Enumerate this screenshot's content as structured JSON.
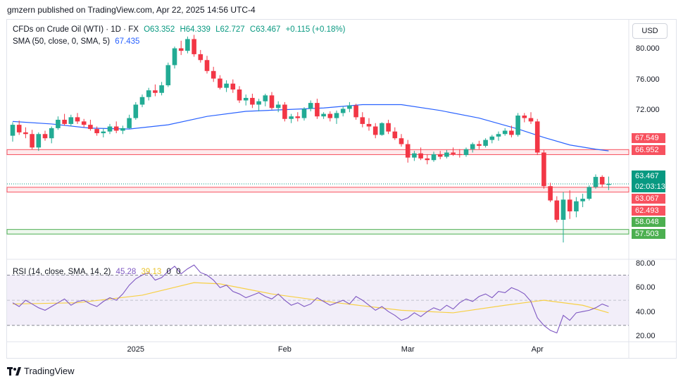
{
  "publisher": "gmzern published on TradingView.com, Apr 22, 2025 14:56 UTC-4",
  "currency": "USD",
  "footer_brand": "TradingView",
  "legend": {
    "title": "CFDs on Crude Oil (WTI) · 1D · FX",
    "open": "O63.352",
    "high": "H64.339",
    "low": "L62.727",
    "close": "C63.467",
    "change": "+0.115 (+0.18%)",
    "sma_label": "SMA (50, close, 0, SMA, 5)",
    "sma_value": "67.435",
    "rsi_label": "RSI (14, close, SMA, 14, 2)",
    "rsi_value": "45.28",
    "rsi_sma_value": "39.13",
    "rsi_extra1": "0",
    "rsi_extra2": "0"
  },
  "badges": {
    "r1": "67.549",
    "r2": "66.952",
    "price": "63.467",
    "countdown": "02:03:13",
    "s1": "63.067",
    "s2": "62.493",
    "s3": "58.048",
    "s4": "57.503"
  },
  "colors": {
    "up": "#22ab94",
    "down": "#f23645",
    "sma": "#2962ff",
    "rsi": "#7e57c2",
    "rsi_sma": "#f7d046",
    "resistance_band": "#f7525f",
    "support_band": "#4caf50"
  },
  "chart_data": {
    "type": "candlestick",
    "price_axis": {
      "ylim": [
        54.5,
        83.0
      ],
      "ticks": [
        "80.000",
        "76.000",
        "72.000"
      ]
    },
    "rsi_axis": {
      "ylim": [
        17,
        82
      ],
      "ticks": [
        "80.00",
        "60.00",
        "40.00",
        "20.00"
      ],
      "bands": [
        30,
        70
      ],
      "mid": 50
    },
    "x_labels": [
      {
        "label": "2025",
        "index": 19
      },
      {
        "label": "Feb",
        "index": 42
      },
      {
        "label": "Mar",
        "index": 61
      },
      {
        "label": "Apr",
        "index": 81
      }
    ],
    "horizontal_levels": {
      "resistance": [
        67.549,
        66.952
      ],
      "current": 63.467,
      "mid": [
        63.067,
        62.493
      ],
      "support": [
        58.048,
        57.503
      ]
    },
    "candles": [
      [
        69.2,
        70.8,
        68.5,
        70.5
      ],
      [
        70.5,
        71.0,
        69.3,
        69.6
      ],
      [
        69.6,
        70.2,
        68.9,
        69.4
      ],
      [
        69.4,
        69.9,
        67.6,
        67.8
      ],
      [
        67.8,
        69.6,
        67.4,
        69.4
      ],
      [
        69.4,
        69.8,
        68.6,
        68.9
      ],
      [
        68.9,
        70.3,
        68.3,
        70.1
      ],
      [
        70.1,
        71.5,
        69.9,
        71.1
      ],
      [
        71.1,
        71.8,
        70.4,
        70.6
      ],
      [
        70.6,
        71.7,
        70.3,
        71.4
      ],
      [
        71.4,
        71.9,
        70.6,
        70.9
      ],
      [
        70.9,
        71.2,
        70.2,
        70.5
      ],
      [
        70.5,
        71.1,
        69.8,
        70.0
      ],
      [
        70.0,
        70.3,
        69.2,
        69.5
      ],
      [
        69.5,
        70.1,
        69.0,
        69.7
      ],
      [
        69.7,
        70.6,
        69.4,
        70.3
      ],
      [
        70.3,
        70.9,
        69.5,
        69.8
      ],
      [
        69.8,
        70.4,
        69.4,
        70.1
      ],
      [
        70.1,
        71.7,
        70.0,
        71.3
      ],
      [
        71.3,
        73.2,
        71.1,
        72.9
      ],
      [
        72.9,
        74.1,
        72.6,
        73.8
      ],
      [
        73.8,
        74.9,
        73.4,
        74.6
      ],
      [
        74.6,
        75.3,
        73.9,
        74.3
      ],
      [
        74.3,
        75.6,
        74.0,
        75.2
      ],
      [
        75.2,
        77.9,
        75.0,
        77.6
      ],
      [
        77.6,
        79.8,
        77.2,
        79.6
      ],
      [
        79.6,
        80.5,
        78.8,
        79.3
      ],
      [
        79.3,
        81.0,
        79.0,
        80.7
      ],
      [
        80.7,
        81.2,
        78.6,
        78.9
      ],
      [
        78.9,
        79.4,
        77.9,
        78.2
      ],
      [
        78.2,
        78.7,
        76.6,
        76.9
      ],
      [
        76.9,
        77.4,
        75.6,
        76.0
      ],
      [
        76.0,
        76.4,
        74.7,
        74.9
      ],
      [
        74.9,
        75.8,
        74.4,
        75.4
      ],
      [
        75.4,
        75.9,
        74.3,
        74.7
      ],
      [
        74.7,
        75.1,
        73.1,
        73.4
      ],
      [
        73.4,
        74.1,
        72.8,
        73.7
      ],
      [
        73.7,
        74.2,
        72.5,
        72.9
      ],
      [
        72.9,
        73.6,
        72.1,
        73.3
      ],
      [
        73.3,
        74.2,
        72.7,
        74.0
      ],
      [
        74.0,
        74.4,
        72.3,
        72.5
      ],
      [
        72.5,
        73.3,
        72.0,
        72.9
      ],
      [
        72.9,
        73.2,
        70.9,
        71.2
      ],
      [
        71.2,
        71.8,
        70.7,
        71.5
      ],
      [
        71.5,
        72.0,
        70.9,
        71.3
      ],
      [
        71.3,
        72.6,
        71.0,
        72.4
      ],
      [
        72.4,
        73.4,
        72.1,
        73.1
      ],
      [
        73.1,
        73.6,
        71.2,
        71.5
      ],
      [
        71.5,
        72.0,
        71.2,
        71.8
      ],
      [
        71.8,
        72.1,
        70.9,
        71.3
      ],
      [
        71.3,
        72.2,
        70.6,
        71.9
      ],
      [
        71.9,
        72.7,
        71.5,
        72.4
      ],
      [
        72.4,
        73.2,
        72.0,
        72.8
      ],
      [
        72.8,
        73.0,
        71.1,
        71.4
      ],
      [
        71.4,
        72.0,
        70.2,
        70.6
      ],
      [
        70.6,
        71.3,
        69.8,
        70.3
      ],
      [
        70.3,
        70.7,
        68.9,
        69.3
      ],
      [
        69.3,
        70.8,
        69.2,
        70.7
      ],
      [
        70.7,
        71.1,
        69.4,
        69.7
      ],
      [
        69.7,
        70.2,
        68.7,
        68.9
      ],
      [
        68.9,
        69.4,
        67.9,
        68.2
      ],
      [
        68.2,
        68.7,
        66.0,
        66.6
      ],
      [
        66.6,
        67.4,
        66.2,
        67.1
      ],
      [
        67.1,
        67.8,
        66.3,
        66.5
      ],
      [
        66.5,
        67.0,
        65.8,
        66.3
      ],
      [
        66.3,
        67.3,
        66.1,
        67.0
      ],
      [
        67.0,
        67.4,
        66.4,
        66.7
      ],
      [
        66.7,
        67.5,
        66.5,
        67.2
      ],
      [
        67.2,
        67.8,
        66.8,
        67.0
      ],
      [
        67.0,
        67.6,
        66.6,
        66.9
      ],
      [
        66.9,
        67.8,
        66.7,
        67.6
      ],
      [
        67.6,
        68.4,
        67.2,
        68.2
      ],
      [
        68.2,
        68.6,
        67.6,
        68.0
      ],
      [
        68.0,
        68.9,
        67.8,
        68.7
      ],
      [
        68.7,
        69.3,
        68.3,
        69.1
      ],
      [
        69.1,
        69.7,
        68.6,
        69.4
      ],
      [
        69.4,
        70.1,
        69.2,
        69.8
      ],
      [
        69.8,
        70.4,
        69.0,
        69.3
      ],
      [
        69.3,
        71.9,
        69.1,
        71.6
      ],
      [
        71.6,
        71.9,
        70.8,
        71.3
      ],
      [
        71.3,
        72.0,
        70.6,
        70.9
      ],
      [
        70.9,
        71.2,
        66.9,
        67.2
      ],
      [
        67.2,
        67.5,
        62.9,
        63.2
      ],
      [
        63.2,
        63.6,
        61.3,
        61.5
      ],
      [
        61.5,
        62.0,
        58.9,
        59.2
      ],
      [
        59.2,
        62.5,
        56.5,
        61.6
      ],
      [
        61.6,
        62.7,
        59.3,
        60.2
      ],
      [
        60.2,
        61.9,
        59.5,
        61.4
      ],
      [
        61.4,
        62.3,
        60.7,
        61.7
      ],
      [
        61.7,
        63.3,
        61.5,
        63.1
      ],
      [
        63.1,
        64.6,
        62.9,
        64.3
      ],
      [
        64.3,
        64.5,
        63.1,
        63.4
      ],
      [
        63.35,
        64.34,
        62.73,
        63.47
      ]
    ],
    "sma50": [
      [
        0,
        70.9
      ],
      [
        6,
        70.6
      ],
      [
        12,
        70.1
      ],
      [
        18,
        70.0
      ],
      [
        24,
        70.5
      ],
      [
        30,
        71.5
      ],
      [
        36,
        72.1
      ],
      [
        42,
        72.3
      ],
      [
        48,
        72.5
      ],
      [
        54,
        72.9
      ],
      [
        60,
        72.9
      ],
      [
        66,
        72.2
      ],
      [
        72,
        71.3
      ],
      [
        78,
        70.0
      ],
      [
        82,
        69.0
      ],
      [
        86,
        68.1
      ],
      [
        90,
        67.6
      ],
      [
        92,
        67.4
      ]
    ],
    "rsi": [
      48,
      45,
      50,
      47,
      44,
      42,
      45,
      48,
      51,
      46,
      49,
      50,
      47,
      45,
      49,
      52,
      50,
      55,
      62,
      67,
      70,
      72,
      66,
      68,
      73,
      77,
      71,
      75,
      78,
      72,
      70,
      66,
      60,
      62,
      57,
      55,
      52,
      54,
      56,
      53,
      51,
      55,
      50,
      46,
      48,
      45,
      47,
      52,
      49,
      46,
      48,
      50,
      47,
      53,
      50,
      46,
      42,
      45,
      41,
      38,
      34,
      36,
      40,
      37,
      41,
      44,
      42,
      46,
      43,
      48,
      51,
      49,
      53,
      55,
      52,
      57,
      56,
      60,
      58,
      55,
      49,
      36,
      30,
      26,
      24,
      38,
      34,
      40,
      41,
      42,
      44,
      47,
      45
    ],
    "rsi_sma": [
      [
        0,
        47
      ],
      [
        10,
        48
      ],
      [
        20,
        54
      ],
      [
        28,
        64
      ],
      [
        32,
        63
      ],
      [
        40,
        55
      ],
      [
        50,
        48
      ],
      [
        60,
        42
      ],
      [
        68,
        40
      ],
      [
        76,
        46
      ],
      [
        82,
        50
      ],
      [
        88,
        46
      ],
      [
        92,
        40
      ]
    ]
  }
}
